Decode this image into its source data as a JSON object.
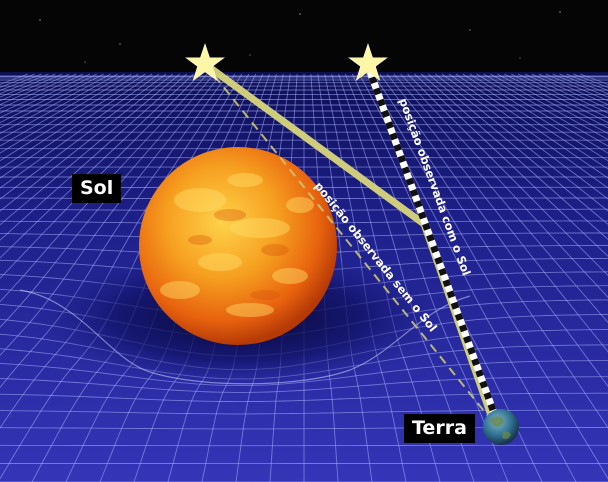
{
  "labels": {
    "sun": "Sol",
    "earth": "Terra",
    "path_with_sun": "posição observada com o Sol",
    "path_without_sun": "posição observada sem o Sol"
  },
  "colors": {
    "space": "#050505",
    "grid_fabric": "#2b2ca6",
    "grid_lines": "#a9b2ff",
    "star": "#fff6a8",
    "light_path": "#d8d67a",
    "sun": "#f08a14",
    "earth": "#2f6f8f"
  },
  "icons": {
    "apparent_star": "star-icon",
    "actual_star": "star-icon"
  }
}
